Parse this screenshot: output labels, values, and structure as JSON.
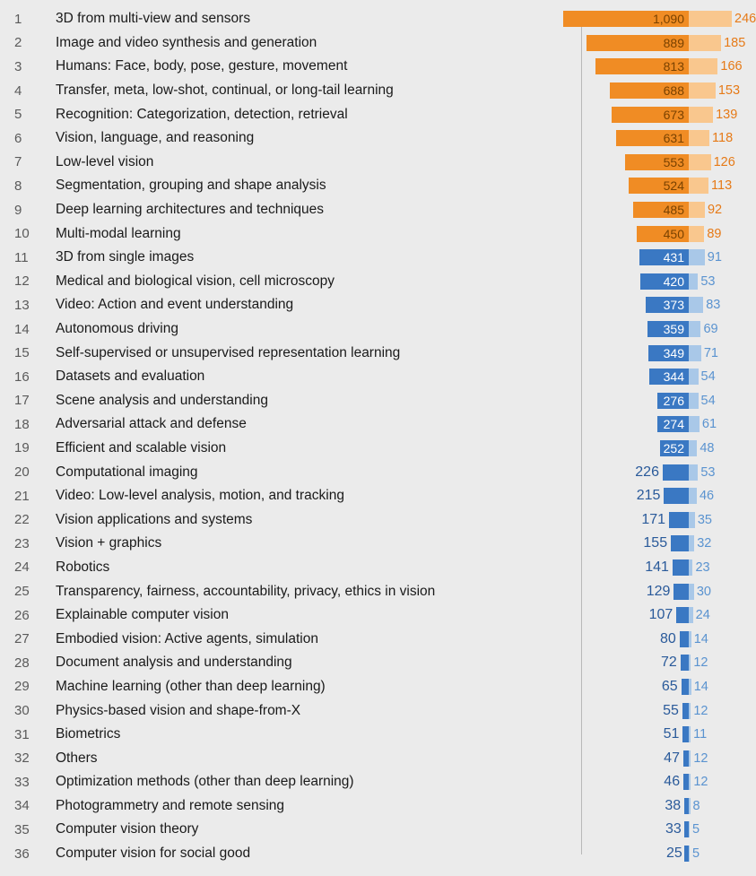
{
  "chart": {
    "type": "bar",
    "background_color": "#ebebeb",
    "axis_line_color": "#b8b8b8",
    "fontsize_rank": 15,
    "fontsize_label": 15.5,
    "fontsize_value": 14.5,
    "rank_color": "#5a5a5a",
    "label_color": "#1a1a1a",
    "series1": {
      "max": 1090,
      "colors": {
        "orange_bar": "#f08c24",
        "orange_text_inside": "#7a4200",
        "orange_text_outside": "#1a1a1a",
        "blue_bar": "#3a78c3",
        "blue_text_inside": "#ffffff",
        "blue_text_outside": "#2a5a9a"
      }
    },
    "series2": {
      "max": 246,
      "colors": {
        "orange_bar": "#f9c78e",
        "orange_text": "#e67a17",
        "blue_bar": "#a9c8e8",
        "blue_text": "#5a93d0"
      }
    },
    "rows": [
      {
        "rank": 1,
        "label": "3D from multi-view and sensors",
        "v1": 1090,
        "v2": 246,
        "tier": "orange"
      },
      {
        "rank": 2,
        "label": "Image and video synthesis and generation",
        "v1": 889,
        "v2": 185,
        "tier": "orange"
      },
      {
        "rank": 3,
        "label": "Humans: Face, body, pose, gesture, movement",
        "v1": 813,
        "v2": 166,
        "tier": "orange"
      },
      {
        "rank": 4,
        "label": "Transfer, meta, low-shot, continual, or long-tail learning",
        "v1": 688,
        "v2": 153,
        "tier": "orange"
      },
      {
        "rank": 5,
        "label": "Recognition: Categorization, detection, retrieval",
        "v1": 673,
        "v2": 139,
        "tier": "orange"
      },
      {
        "rank": 6,
        "label": "Vision, language, and reasoning",
        "v1": 631,
        "v2": 118,
        "tier": "orange"
      },
      {
        "rank": 7,
        "label": "Low-level vision",
        "v1": 553,
        "v2": 126,
        "tier": "orange"
      },
      {
        "rank": 8,
        "label": "Segmentation, grouping and shape analysis",
        "v1": 524,
        "v2": 113,
        "tier": "orange"
      },
      {
        "rank": 9,
        "label": "Deep learning architectures and techniques",
        "v1": 485,
        "v2": 92,
        "tier": "orange"
      },
      {
        "rank": 10,
        "label": "Multi-modal learning",
        "v1": 450,
        "v2": 89,
        "tier": "orange"
      },
      {
        "rank": 11,
        "label": "3D from single images",
        "v1": 431,
        "v2": 91,
        "tier": "blue"
      },
      {
        "rank": 12,
        "label": "Medical and biological vision, cell microscopy",
        "v1": 420,
        "v2": 53,
        "tier": "blue"
      },
      {
        "rank": 13,
        "label": "Video: Action and event understanding",
        "v1": 373,
        "v2": 83,
        "tier": "blue"
      },
      {
        "rank": 14,
        "label": "Autonomous driving",
        "v1": 359,
        "v2": 69,
        "tier": "blue"
      },
      {
        "rank": 15,
        "label": "Self-supervised or unsupervised representation learning",
        "v1": 349,
        "v2": 71,
        "tier": "blue"
      },
      {
        "rank": 16,
        "label": "Datasets and evaluation",
        "v1": 344,
        "v2": 54,
        "tier": "blue"
      },
      {
        "rank": 17,
        "label": "Scene analysis and understanding",
        "v1": 276,
        "v2": 54,
        "tier": "blue"
      },
      {
        "rank": 18,
        "label": "Adversarial attack and defense",
        "v1": 274,
        "v2": 61,
        "tier": "blue"
      },
      {
        "rank": 19,
        "label": "Efficient and scalable vision",
        "v1": 252,
        "v2": 48,
        "tier": "blue"
      },
      {
        "rank": 20,
        "label": "Computational imaging",
        "v1": 226,
        "v2": 53,
        "tier": "blue"
      },
      {
        "rank": 21,
        "label": "Video: Low-level analysis, motion, and tracking",
        "v1": 215,
        "v2": 46,
        "tier": "blue"
      },
      {
        "rank": 22,
        "label": "Vision applications and systems",
        "v1": 171,
        "v2": 35,
        "tier": "blue"
      },
      {
        "rank": 23,
        "label": "Vision + graphics",
        "v1": 155,
        "v2": 32,
        "tier": "blue"
      },
      {
        "rank": 24,
        "label": "Robotics",
        "v1": 141,
        "v2": 23,
        "tier": "blue"
      },
      {
        "rank": 25,
        "label": "Transparency, fairness, accountability, privacy, ethics in vision",
        "v1": 129,
        "v2": 30,
        "tier": "blue"
      },
      {
        "rank": 26,
        "label": "Explainable computer vision",
        "v1": 107,
        "v2": 24,
        "tier": "blue"
      },
      {
        "rank": 27,
        "label": "Embodied vision: Active agents, simulation",
        "v1": 80,
        "v2": 14,
        "tier": "blue"
      },
      {
        "rank": 28,
        "label": "Document analysis and understanding",
        "v1": 72,
        "v2": 12,
        "tier": "blue"
      },
      {
        "rank": 29,
        "label": "Machine learning (other than deep learning)",
        "v1": 65,
        "v2": 14,
        "tier": "blue"
      },
      {
        "rank": 30,
        "label": "Physics-based vision and shape-from-X",
        "v1": 55,
        "v2": 12,
        "tier": "blue"
      },
      {
        "rank": 31,
        "label": "Biometrics",
        "v1": 51,
        "v2": 11,
        "tier": "blue"
      },
      {
        "rank": 32,
        "label": "Others",
        "v1": 47,
        "v2": 12,
        "tier": "blue"
      },
      {
        "rank": 33,
        "label": "Optimization methods (other than deep learning)",
        "v1": 46,
        "v2": 12,
        "tier": "blue"
      },
      {
        "rank": 34,
        "label": "Photogrammetry and remote sensing",
        "v1": 38,
        "v2": 8,
        "tier": "blue"
      },
      {
        "rank": 35,
        "label": "Computer vision theory",
        "v1": 33,
        "v2": 5,
        "tier": "blue"
      },
      {
        "rank": 36,
        "label": "Computer vision for social good",
        "v1": 25,
        "v2": 5,
        "tier": "blue"
      }
    ]
  }
}
